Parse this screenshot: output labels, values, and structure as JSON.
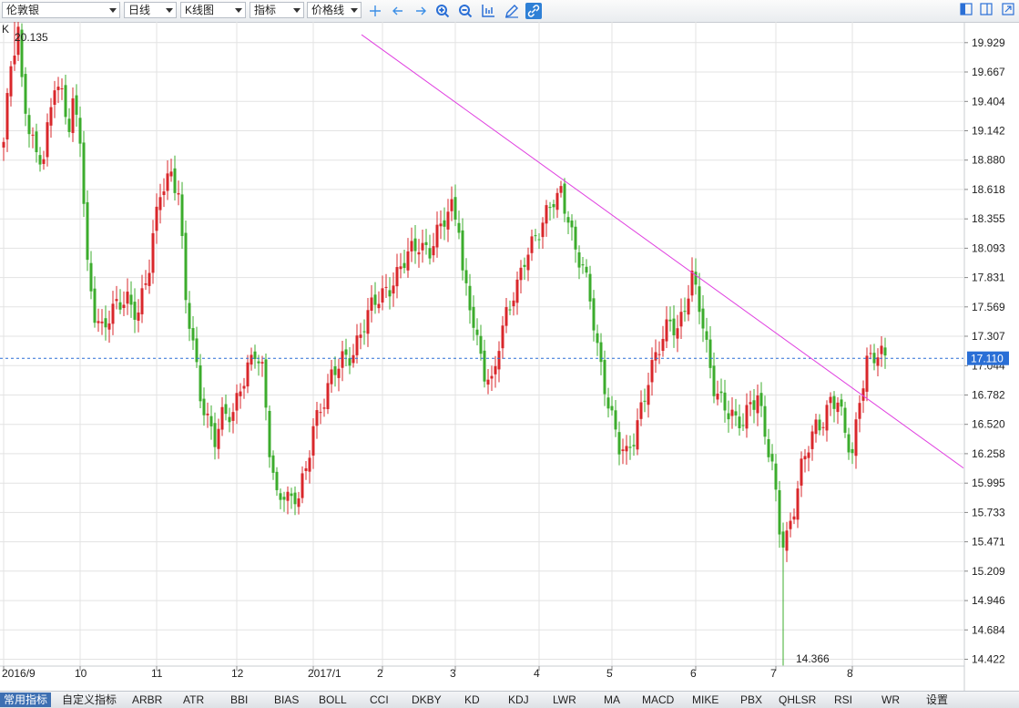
{
  "toolbar": {
    "symbol": "伦敦银",
    "period": "日线",
    "chart_type": "K线图",
    "indicator": "指标",
    "line_type": "价格线",
    "tools": [
      "crosshair-icon",
      "arrow-left-icon",
      "arrow-right-icon",
      "zoom-in-icon",
      "zoom-out-icon",
      "axis-icon",
      "pencil-icon",
      "link-icon"
    ]
  },
  "chart_data": {
    "type": "candlestick",
    "series_label": "K",
    "y_ticks": [
      "19.929",
      "19.667",
      "19.404",
      "19.142",
      "18.880",
      "18.618",
      "18.355",
      "18.093",
      "17.831",
      "17.569",
      "17.307",
      "17.044",
      "16.782",
      "16.520",
      "16.258",
      "15.995",
      "15.733",
      "15.471",
      "15.209",
      "14.946",
      "14.684",
      "14.422"
    ],
    "x_ticks": [
      {
        "label": "2016/9",
        "day": 0
      },
      {
        "label": "10",
        "day": 21
      },
      {
        "label": "11",
        "day": 42
      },
      {
        "label": "12",
        "day": 64
      },
      {
        "label": "2017/1",
        "day": 85
      },
      {
        "label": "2",
        "day": 104
      },
      {
        "label": "3",
        "day": 124
      },
      {
        "label": "4",
        "day": 147
      },
      {
        "label": "5",
        "day": 167
      },
      {
        "label": "6",
        "day": 190
      },
      {
        "label": "7",
        "day": 212
      },
      {
        "label": "8",
        "day": 233
      }
    ],
    "ylim": [
      14.3,
      20.3
    ],
    "num_days": 243,
    "current_price": "17.110",
    "high_label": "20.135",
    "low_label": "14.366",
    "anchors": [
      [
        0,
        19.0
      ],
      [
        2,
        19.7
      ],
      [
        4,
        20.05
      ],
      [
        5,
        19.6
      ],
      [
        7,
        19.2
      ],
      [
        9,
        18.9
      ],
      [
        11,
        18.85
      ],
      [
        14,
        19.6
      ],
      [
        16,
        19.5
      ],
      [
        18,
        19.2
      ],
      [
        19,
        19.35
      ],
      [
        21,
        19.05
      ],
      [
        23,
        17.9
      ],
      [
        25,
        17.55
      ],
      [
        27,
        17.4
      ],
      [
        30,
        17.5
      ],
      [
        34,
        17.65
      ],
      [
        37,
        17.55
      ],
      [
        40,
        17.9
      ],
      [
        43,
        18.6
      ],
      [
        46,
        18.8
      ],
      [
        48,
        18.6
      ],
      [
        50,
        17.6
      ],
      [
        52,
        17.2
      ],
      [
        54,
        16.8
      ],
      [
        56,
        16.6
      ],
      [
        58,
        16.4
      ],
      [
        60,
        16.55
      ],
      [
        63,
        16.6
      ],
      [
        65,
        16.9
      ],
      [
        67,
        17.05
      ],
      [
        69,
        17.15
      ],
      [
        71,
        16.95
      ],
      [
        73,
        16.3
      ],
      [
        75,
        15.9
      ],
      [
        77,
        15.95
      ],
      [
        79,
        15.8
      ],
      [
        81,
        15.85
      ],
      [
        83,
        16.1
      ],
      [
        85,
        16.55
      ],
      [
        88,
        16.75
      ],
      [
        90,
        16.9
      ],
      [
        93,
        17.1
      ],
      [
        96,
        17.2
      ],
      [
        99,
        17.4
      ],
      [
        102,
        17.6
      ],
      [
        105,
        17.75
      ],
      [
        108,
        17.85
      ],
      [
        111,
        18.0
      ],
      [
        114,
        18.15
      ],
      [
        117,
        18.1
      ],
      [
        120,
        18.25
      ],
      [
        123,
        18.45
      ],
      [
        125,
        18.35
      ],
      [
        126,
        17.9
      ],
      [
        128,
        17.6
      ],
      [
        130,
        17.2
      ],
      [
        132,
        16.95
      ],
      [
        134,
        16.9
      ],
      [
        136,
        17.3
      ],
      [
        138,
        17.5
      ],
      [
        141,
        17.7
      ],
      [
        143,
        18.0
      ],
      [
        146,
        18.25
      ],
      [
        148,
        18.3
      ],
      [
        150,
        18.45
      ],
      [
        152,
        18.5
      ],
      [
        153,
        18.6
      ],
      [
        155,
        18.4
      ],
      [
        157,
        18.1
      ],
      [
        159,
        17.9
      ],
      [
        161,
        17.6
      ],
      [
        163,
        17.2
      ],
      [
        165,
        16.9
      ],
      [
        167,
        16.6
      ],
      [
        169,
        16.3
      ],
      [
        171,
        16.2
      ],
      [
        173,
        16.4
      ],
      [
        175,
        16.7
      ],
      [
        177,
        16.95
      ],
      [
        179,
        17.1
      ],
      [
        181,
        17.25
      ],
      [
        183,
        17.45
      ],
      [
        185,
        17.4
      ],
      [
        187,
        17.6
      ],
      [
        189,
        17.8
      ],
      [
        191,
        17.55
      ],
      [
        193,
        17.2
      ],
      [
        195,
        16.9
      ],
      [
        197,
        16.75
      ],
      [
        199,
        16.6
      ],
      [
        201,
        16.5
      ],
      [
        203,
        16.55
      ],
      [
        205,
        16.75
      ],
      [
        207,
        16.8
      ],
      [
        209,
        16.4
      ],
      [
        211,
        16.1
      ],
      [
        213,
        15.6
      ],
      [
        214,
        15.5
      ],
      [
        215,
        15.55
      ],
      [
        217,
        15.8
      ],
      [
        219,
        16.1
      ],
      [
        221,
        16.3
      ],
      [
        223,
        16.5
      ],
      [
        225,
        16.6
      ],
      [
        227,
        16.75
      ],
      [
        229,
        16.7
      ],
      [
        231,
        16.4
      ],
      [
        233,
        16.25
      ],
      [
        235,
        16.8
      ],
      [
        237,
        17.1
      ],
      [
        238,
        17.1
      ]
    ],
    "spikes": [
      [
        214,
        14.366,
        "low"
      ],
      [
        3,
        20.135,
        "high"
      ]
    ],
    "trendline": [
      [
        94,
        20.0
      ],
      [
        640,
        18.62
      ],
      [
        783,
        17.83
      ],
      [
        1058,
        16.13
      ]
    ]
  },
  "bottom_tabs": [
    "常用指标",
    "自定义指标",
    "ARBR",
    "ATR",
    "BBI",
    "BIAS",
    "BOLL",
    "CCI",
    "DKBY",
    "KD",
    "KDJ",
    "LWR",
    "MA",
    "MACD",
    "MIKE",
    "PBX",
    "QHLSR",
    "RSI",
    "WR",
    "设置"
  ],
  "colors": {
    "up": "#d9272b",
    "down": "#3cac2d",
    "grid": "#e3e3e3",
    "trend": "#e040e0",
    "price_line": "#2a6fd6",
    "price_box": "#2a6fd6"
  }
}
